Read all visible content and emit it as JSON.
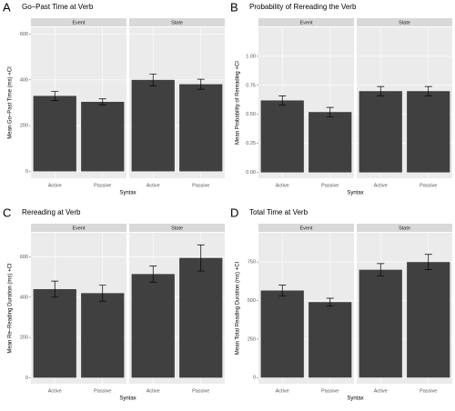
{
  "chart_data": [
    {
      "type": "bar",
      "panel": "A",
      "title": "Go–Past Time at Verb",
      "ylabel": "Mean Go–Past Time (ms) +CI",
      "xlabel": "Syntax",
      "facets": [
        "Event",
        "State"
      ],
      "categories": [
        "Active",
        "Passive"
      ],
      "values": [
        [
          330,
          304
        ],
        [
          400,
          381
        ]
      ],
      "errors": [
        [
          20,
          13
        ],
        [
          26,
          22
        ]
      ],
      "color": "#404040",
      "ylim": [
        -30,
        630
      ],
      "yticks": [
        0,
        200,
        400,
        600
      ],
      "grid": true
    },
    {
      "type": "bar",
      "panel": "B",
      "title": "Probability of Rereading the Verb",
      "ylabel": "Mean Probability of Rereading +CI",
      "xlabel": "Syntax",
      "facets": [
        "Event",
        "State"
      ],
      "categories": [
        "Active",
        "Passive"
      ],
      "values": [
        [
          0.62,
          0.52
        ],
        [
          0.7,
          0.7
        ]
      ],
      "errors": [
        [
          0.04,
          0.04
        ],
        [
          0.04,
          0.04
        ]
      ],
      "color": "#404040",
      "ylim": [
        -0.05,
        1.25
      ],
      "yticks": [
        {
          "value": 0,
          "label": "0.00"
        },
        {
          "value": 0.25,
          "label": "0.25"
        },
        {
          "value": 0.5,
          "label": "0.50"
        },
        {
          "value": 0.75,
          "label": "0.75"
        },
        {
          "value": 1,
          "label": "1.00"
        }
      ],
      "grid": true
    },
    {
      "type": "bar",
      "panel": "C",
      "title": "Rereading at Verb",
      "ylabel": "Mean Re–Reading Duration (ms) +CI",
      "xlabel": "Syntax",
      "facets": [
        "Event",
        "State"
      ],
      "categories": [
        "Active",
        "Passive"
      ],
      "values": [
        [
          440,
          420
        ],
        [
          515,
          595
        ]
      ],
      "errors": [
        [
          40,
          40
        ],
        [
          40,
          65
        ]
      ],
      "color": "#404040",
      "ylim": [
        -30,
        720
      ],
      "yticks": [
        0,
        200,
        400,
        600
      ],
      "grid": true
    },
    {
      "type": "bar",
      "panel": "D",
      "title": "Total Time at Verb",
      "ylabel": "Mean Total Reading Duration (ms) +CI",
      "xlabel": "Syntax",
      "facets": [
        "Event",
        "State"
      ],
      "categories": [
        "Active",
        "Passive"
      ],
      "values": [
        [
          565,
          490
        ],
        [
          700,
          750
        ]
      ],
      "errors": [
        [
          35,
          25
        ],
        [
          40,
          50
        ]
      ],
      "color": "#404040",
      "ylim": [
        -40,
        940
      ],
      "yticks": [
        0,
        250,
        500,
        750
      ],
      "grid": true
    }
  ]
}
